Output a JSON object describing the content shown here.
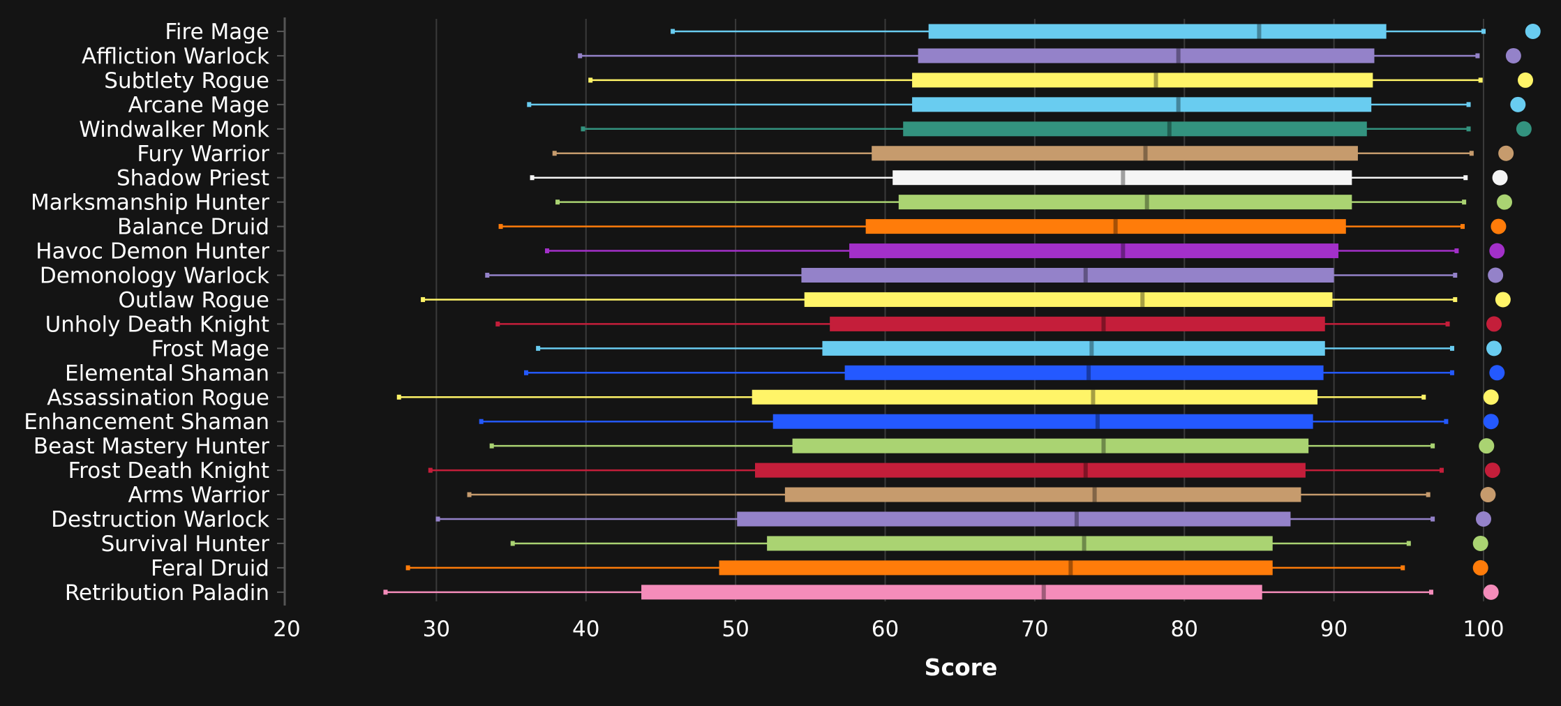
{
  "chart_data": {
    "type": "box",
    "xlabel": "Score",
    "xlim": [
      20,
      100
    ],
    "xticks": [
      20,
      30,
      40,
      50,
      60,
      70,
      80,
      90,
      100
    ],
    "grid": "vertical",
    "orientation": "horizontal",
    "series": [
      {
        "name": "Fire Mage",
        "color": "#69ccf0",
        "min": 45.8,
        "q1": 62.9,
        "median": 85.0,
        "q3": 93.5,
        "max": 100.0,
        "marker": 103.3
      },
      {
        "name": "Affliction Warlock",
        "color": "#9482c9",
        "min": 39.6,
        "q1": 62.2,
        "median": 79.6,
        "q3": 92.7,
        "max": 99.6,
        "marker": 102.0
      },
      {
        "name": "Subtlety Rogue",
        "color": "#fff468",
        "min": 40.3,
        "q1": 61.8,
        "median": 78.1,
        "q3": 92.6,
        "max": 99.8,
        "marker": 102.8
      },
      {
        "name": "Arcane Mage",
        "color": "#69ccf0",
        "min": 36.2,
        "q1": 61.8,
        "median": 79.6,
        "q3": 92.5,
        "max": 99.0,
        "marker": 102.3
      },
      {
        "name": "Windwalker Monk",
        "color": "#33937f",
        "min": 39.8,
        "q1": 61.2,
        "median": 79.0,
        "q3": 92.2,
        "max": 99.0,
        "marker": 102.7
      },
      {
        "name": "Fury Warrior",
        "color": "#c69b6d",
        "min": 37.9,
        "q1": 59.1,
        "median": 77.4,
        "q3": 91.6,
        "max": 99.2,
        "marker": 101.5
      },
      {
        "name": "Shadow Priest",
        "color": "#f5f5f5",
        "min": 36.4,
        "q1": 60.5,
        "median": 75.9,
        "q3": 91.2,
        "max": 98.8,
        "marker": 101.1
      },
      {
        "name": "Marksmanship Hunter",
        "color": "#aad372",
        "min": 38.1,
        "q1": 60.9,
        "median": 77.5,
        "q3": 91.2,
        "max": 98.7,
        "marker": 101.4
      },
      {
        "name": "Balance Druid",
        "color": "#ff7c0a",
        "min": 34.3,
        "q1": 58.7,
        "median": 75.4,
        "q3": 90.8,
        "max": 98.6,
        "marker": 101.0
      },
      {
        "name": "Havoc Demon Hunter",
        "color": "#a330c9",
        "min": 37.4,
        "q1": 57.6,
        "median": 75.9,
        "q3": 90.3,
        "max": 98.2,
        "marker": 100.9
      },
      {
        "name": "Demonology Warlock",
        "color": "#9482c9",
        "min": 33.4,
        "q1": 54.4,
        "median": 73.4,
        "q3": 90.0,
        "max": 98.1,
        "marker": 100.8
      },
      {
        "name": "Outlaw Rogue",
        "color": "#fff468",
        "min": 29.1,
        "q1": 54.6,
        "median": 77.2,
        "q3": 89.9,
        "max": 98.1,
        "marker": 101.3
      },
      {
        "name": "Unholy Death Knight",
        "color": "#c41e3a",
        "min": 34.1,
        "q1": 56.3,
        "median": 74.6,
        "q3": 89.4,
        "max": 97.6,
        "marker": 100.7
      },
      {
        "name": "Frost Mage",
        "color": "#69ccf0",
        "min": 36.8,
        "q1": 55.8,
        "median": 73.8,
        "q3": 89.4,
        "max": 97.9,
        "marker": 100.7
      },
      {
        "name": "Elemental Shaman",
        "color": "#2459ff",
        "min": 36.0,
        "q1": 57.3,
        "median": 73.6,
        "q3": 89.3,
        "max": 97.9,
        "marker": 100.9
      },
      {
        "name": "Assassination Rogue",
        "color": "#fff468",
        "min": 27.5,
        "q1": 51.1,
        "median": 73.9,
        "q3": 88.9,
        "max": 96.0,
        "marker": 100.5
      },
      {
        "name": "Enhancement Shaman",
        "color": "#2459ff",
        "min": 33.0,
        "q1": 52.5,
        "median": 74.2,
        "q3": 88.6,
        "max": 97.5,
        "marker": 100.5
      },
      {
        "name": "Beast Mastery Hunter",
        "color": "#aad372",
        "min": 33.7,
        "q1": 53.8,
        "median": 74.6,
        "q3": 88.3,
        "max": 96.6,
        "marker": 100.2
      },
      {
        "name": "Frost Death Knight",
        "color": "#c41e3a",
        "min": 29.6,
        "q1": 51.3,
        "median": 73.4,
        "q3": 88.1,
        "max": 97.2,
        "marker": 100.6
      },
      {
        "name": "Arms Warrior",
        "color": "#c69b6d",
        "min": 32.2,
        "q1": 53.3,
        "median": 74.0,
        "q3": 87.8,
        "max": 96.3,
        "marker": 100.3
      },
      {
        "name": "Destruction Warlock",
        "color": "#9482c9",
        "min": 30.1,
        "q1": 50.1,
        "median": 72.8,
        "q3": 87.1,
        "max": 96.6,
        "marker": 100.0
      },
      {
        "name": "Survival Hunter",
        "color": "#aad372",
        "min": 35.1,
        "q1": 52.1,
        "median": 73.3,
        "q3": 85.9,
        "max": 95.0,
        "marker": 99.8
      },
      {
        "name": "Feral Druid",
        "color": "#ff7c0a",
        "min": 28.1,
        "q1": 48.9,
        "median": 72.4,
        "q3": 85.9,
        "max": 94.6,
        "marker": 99.8
      },
      {
        "name": "Retribution Paladin",
        "color": "#f48cba",
        "min": 26.6,
        "q1": 43.7,
        "median": 70.6,
        "q3": 85.2,
        "max": 96.5,
        "marker": 100.5
      }
    ]
  }
}
